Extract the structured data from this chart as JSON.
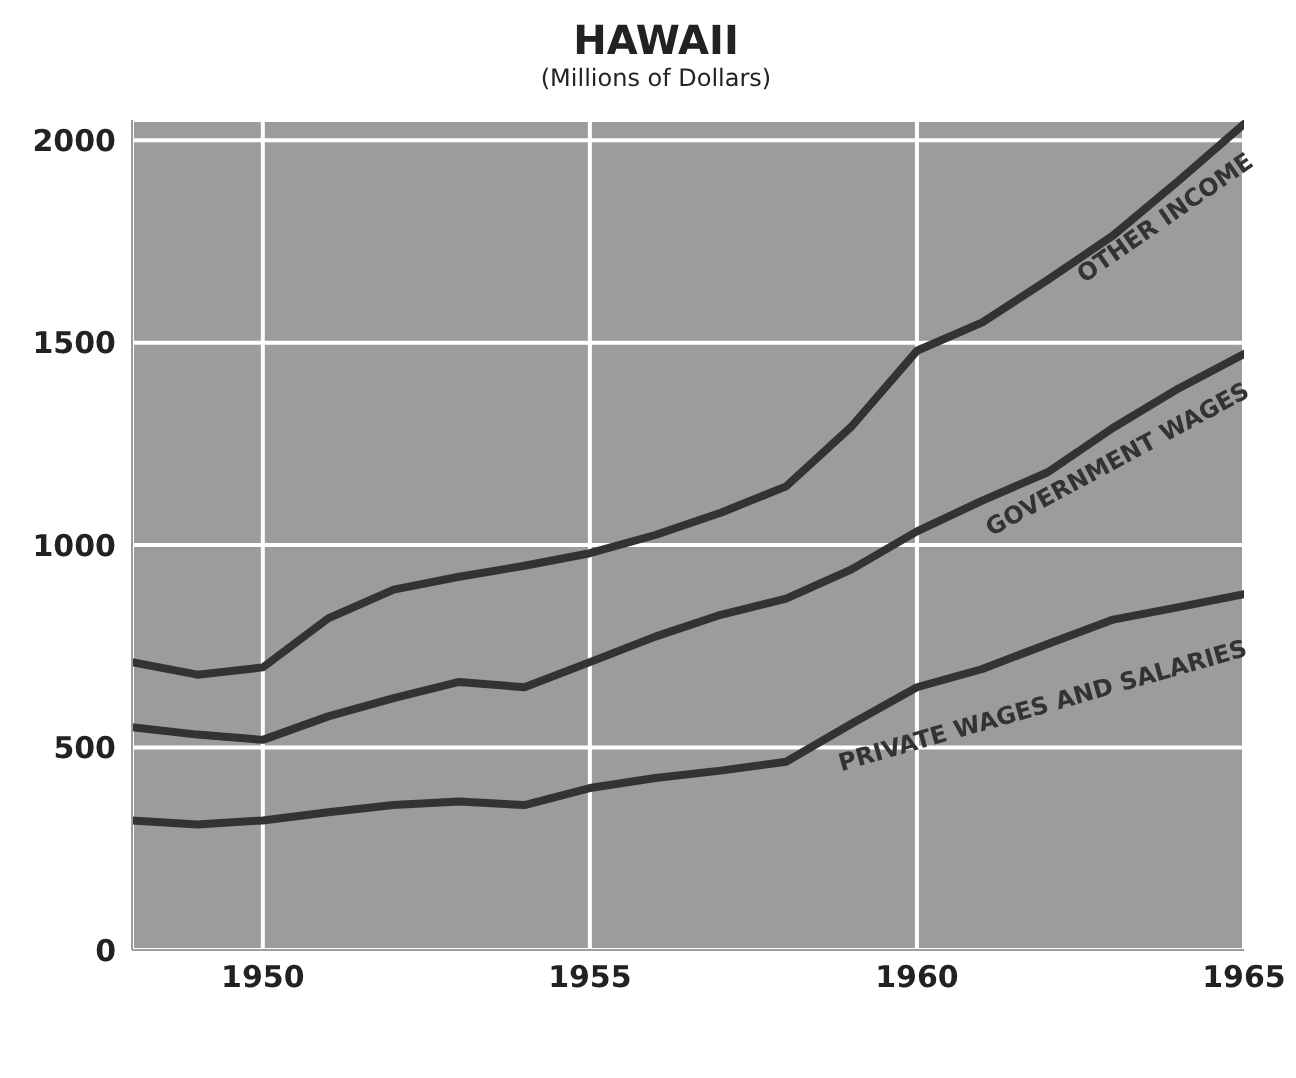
{
  "chart_data": {
    "type": "line",
    "title": "HAWAII",
    "subtitle": "(Millions of Dollars)",
    "x": [
      1948,
      1949,
      1950,
      1951,
      1952,
      1953,
      1954,
      1955,
      1956,
      1957,
      1958,
      1959,
      1960,
      1961,
      1962,
      1963,
      1964,
      1965
    ],
    "series": [
      {
        "name": "OTHER INCOME",
        "color": "#333333",
        "values": [
          711,
          680,
          698,
          819,
          890,
          922,
          949,
          980,
          1025,
          1080,
          1145,
          1293,
          1480,
          1550,
          1655,
          1765,
          1900,
          2040
        ]
      },
      {
        "name": "GOVERNMENT WAGES",
        "color": "#333333",
        "values": [
          550,
          532,
          519,
          577,
          622,
          662,
          649,
          711,
          774,
          828,
          868,
          940,
          1034,
          1110,
          1180,
          1290,
          1387,
          1472
        ]
      },
      {
        "name": "PRIVATE WAGES AND SALARIES",
        "color": "#333333",
        "values": [
          320,
          310,
          320,
          340,
          358,
          367,
          358,
          400,
          425,
          443,
          465,
          559,
          649,
          694,
          756,
          816,
          847,
          879
        ]
      }
    ],
    "xlim": [
      1948,
      1965
    ],
    "xticks": [
      1950,
      1955,
      1960,
      1965
    ],
    "ylim": [
      0,
      2050
    ],
    "yticks": [
      0,
      500,
      1000,
      1500,
      2000
    ],
    "grid": true,
    "legend": false,
    "marker": "none",
    "line_style": "solid"
  }
}
